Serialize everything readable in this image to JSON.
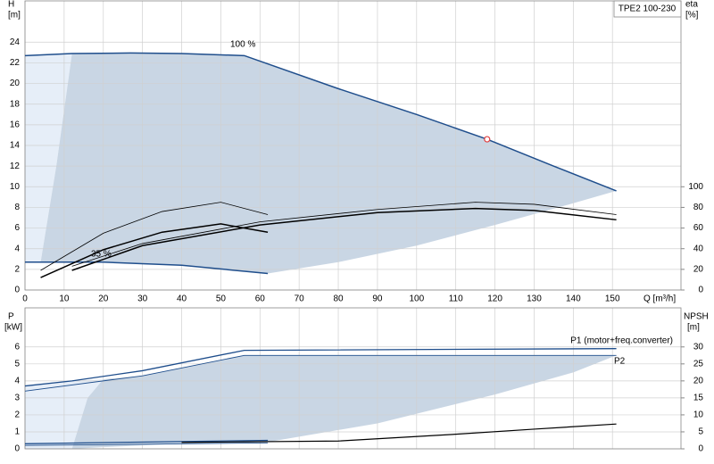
{
  "chart_data": [
    {
      "type": "line",
      "model": "TPE2 100-230",
      "y_label": "H",
      "y_unit": "[m]",
      "y2_label": "eta",
      "y2_unit": "[%]",
      "x_label": "Q [m³/h]",
      "xlim": [
        0,
        167.5
      ],
      "xticks": [
        0,
        10,
        20,
        30,
        40,
        50,
        60,
        70,
        80,
        90,
        100,
        110,
        120,
        130,
        140,
        150
      ],
      "ylim": [
        0,
        28
      ],
      "yticks": [
        0,
        2,
        4,
        6,
        8,
        10,
        12,
        14,
        16,
        18,
        20,
        22,
        24
      ],
      "y2lim": [
        0,
        280
      ],
      "y2ticks": [
        0,
        20,
        40,
        60,
        80,
        100
      ],
      "grid": true,
      "areas": [
        {
          "color": "#e6eef8",
          "x": [
            0,
            12,
            8,
            4,
            0
          ],
          "values": [
            22.7,
            22.9,
            12,
            2.7,
            2.7
          ]
        },
        {
          "color": "#c9d6e4",
          "x": [
            4,
            8,
            12,
            27,
            40,
            56,
            80,
            100,
            118,
            135,
            151,
            140,
            120,
            100,
            80,
            62,
            40,
            20
          ],
          "values": [
            2.7,
            12,
            22.9,
            22.95,
            22.9,
            22.7,
            19.5,
            17,
            14.6,
            12,
            9.6,
            8.4,
            6.3,
            4.3,
            2.7,
            1.6,
            2.4,
            2.7
          ]
        }
      ],
      "series": [
        {
          "name": "100 %",
          "color": "#1f4e8c",
          "line_width": 1.5,
          "x": [
            0,
            12,
            27,
            40,
            56,
            80,
            100,
            118,
            135,
            151
          ],
          "values": [
            22.7,
            22.9,
            22.95,
            22.9,
            22.7,
            19.5,
            17,
            14.6,
            12,
            9.6
          ]
        },
        {
          "name": "35 %",
          "color": "#1f4e8c",
          "line_width": 1.5,
          "x": [
            0,
            20,
            40,
            62
          ],
          "values": [
            2.7,
            2.7,
            2.4,
            1.6
          ]
        },
        {
          "color": "#000000",
          "line_width": 1.5,
          "axis": "y2",
          "x": [
            12,
            30,
            60,
            90,
            115,
            130,
            151
          ],
          "values": [
            19,
            43,
            63,
            75,
            79,
            77,
            68
          ]
        },
        {
          "color": "#000000",
          "line_width": 0.8,
          "axis": "y2",
          "x": [
            12,
            30,
            60,
            90,
            115,
            130,
            151
          ],
          "values": [
            23,
            45,
            66,
            78,
            85,
            83,
            73
          ]
        },
        {
          "color": "#000000",
          "line_width": 1.5,
          "axis": "y2",
          "x": [
            4,
            20,
            35,
            50,
            62
          ],
          "values": [
            12,
            39,
            56,
            64,
            56
          ]
        },
        {
          "color": "#000000",
          "line_width": 0.8,
          "axis": "y2",
          "x": [
            4,
            20,
            35,
            50,
            62
          ],
          "values": [
            19,
            55,
            76,
            85,
            73
          ]
        }
      ],
      "duty_point": {
        "x": 118,
        "y": 14.6,
        "color": "#e04040"
      }
    },
    {
      "type": "line",
      "y_label": "P",
      "y_unit": "[kW]",
      "y2_label": "NPSH",
      "y2_unit": "[m]",
      "xlim": [
        0,
        167.5
      ],
      "xticks": [
        0,
        10,
        20,
        30,
        40,
        50,
        60,
        70,
        80,
        90,
        100,
        110,
        120,
        130,
        140,
        150
      ],
      "ylim": [
        0,
        8.3
      ],
      "yticks": [
        0,
        1,
        2,
        3,
        4,
        5,
        6
      ],
      "y2lim": [
        0,
        41.5
      ],
      "y2ticks": [
        0,
        5,
        10,
        15,
        20,
        25,
        30
      ],
      "grid": true,
      "areas": [
        {
          "color": "#e6eef8",
          "x": [
            0,
            12,
            20,
            16,
            12,
            0
          ],
          "values": [
            3.7,
            4.0,
            4.1,
            3.0,
            0,
            0
          ]
        },
        {
          "color": "#c9d6e4",
          "x": [
            12,
            16,
            20,
            30,
            56,
            151,
            140,
            120,
            90,
            62,
            40,
            20
          ],
          "values": [
            0,
            3.0,
            4.1,
            4.3,
            5.5,
            5.5,
            4.5,
            3.2,
            1.5,
            0.4,
            0.3,
            0.1
          ]
        }
      ],
      "series": [
        {
          "name": "P1 (motor+freq.converter)",
          "color": "#1f4e8c",
          "line_width": 1.3,
          "x": [
            0,
            12,
            30,
            56,
            151
          ],
          "values": [
            3.7,
            4.0,
            4.6,
            5.8,
            5.9
          ]
        },
        {
          "name": "P2",
          "color": "#1f4e8c",
          "line_width": 0.9,
          "x": [
            0,
            30,
            56,
            151
          ],
          "values": [
            3.4,
            4.3,
            5.5,
            5.5
          ]
        },
        {
          "color": "#1f4e8c",
          "line_width": 1.3,
          "x": [
            0,
            62
          ],
          "values": [
            0.3,
            0.5
          ]
        },
        {
          "color": "#1f4e8c",
          "line_width": 0.9,
          "x": [
            0,
            62
          ],
          "values": [
            0.2,
            0.35
          ]
        },
        {
          "color": "#000000",
          "line_width": 1.2,
          "axis": "y2",
          "x": [
            40,
            80,
            110,
            130,
            151
          ],
          "values": [
            1.9,
            2.3,
            4.3,
            5.8,
            7.3
          ]
        }
      ]
    }
  ]
}
